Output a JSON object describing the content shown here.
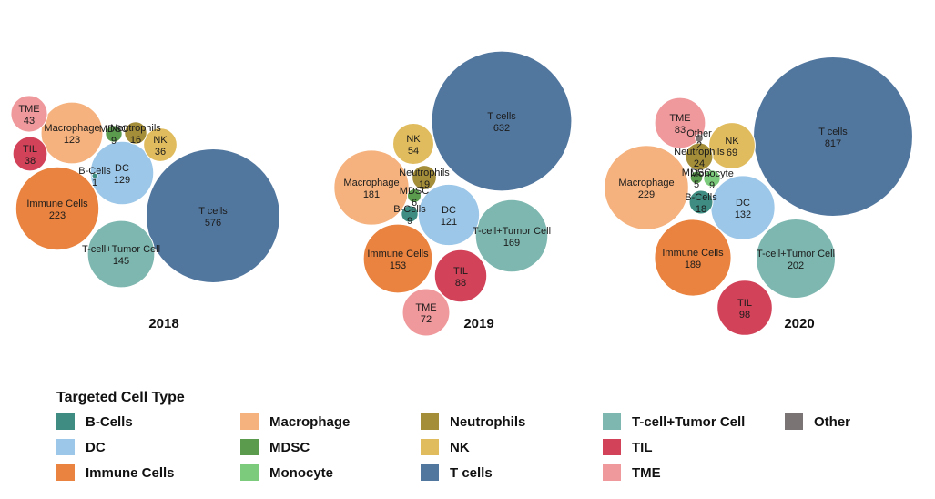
{
  "chart_data": [
    {
      "type": "bubble",
      "title": "2018",
      "bubbles": [
        {
          "name": "TME",
          "value": 43,
          "color": "#F0999C"
        },
        {
          "name": "TIL",
          "value": 38,
          "color": "#D2435A"
        },
        {
          "name": "Macrophage",
          "value": 123,
          "color": "#F5B27E"
        },
        {
          "name": "MDSC",
          "value": 9,
          "color": "#5B9B4E"
        },
        {
          "name": "Neutrophils",
          "value": 16,
          "color": "#A48E3A"
        },
        {
          "name": "NK",
          "value": 36,
          "color": "#E0BC5E"
        },
        {
          "name": "B-Cells",
          "value": 1,
          "color": "#3E8C82"
        },
        {
          "name": "DC",
          "value": 129,
          "color": "#9CC7E8"
        },
        {
          "name": "Immune Cells",
          "value": 223,
          "color": "#E9833F"
        },
        {
          "name": "T-cell+Tumor Cell",
          "value": 145,
          "color": "#7DB7AF"
        },
        {
          "name": "T cells",
          "value": 576,
          "color": "#52779F"
        }
      ]
    },
    {
      "type": "bubble",
      "title": "2019",
      "bubbles": [
        {
          "name": "T cells",
          "value": 632,
          "color": "#52779F"
        },
        {
          "name": "NK",
          "value": 54,
          "color": "#E0BC5E"
        },
        {
          "name": "Macrophage",
          "value": 181,
          "color": "#F5B27E"
        },
        {
          "name": "Neutrophils",
          "value": 19,
          "color": "#A48E3A"
        },
        {
          "name": "MDSC",
          "value": 6,
          "color": "#5B9B4E"
        },
        {
          "name": "B-Cells",
          "value": 9,
          "color": "#3E8C82"
        },
        {
          "name": "DC",
          "value": 121,
          "color": "#9CC7E8"
        },
        {
          "name": "T-cell+Tumor Cell",
          "value": 169,
          "color": "#7DB7AF"
        },
        {
          "name": "Immune Cells",
          "value": 153,
          "color": "#E9833F"
        },
        {
          "name": "TIL",
          "value": 88,
          "color": "#D2435A"
        },
        {
          "name": "TME",
          "value": 72,
          "color": "#F0999C"
        }
      ]
    },
    {
      "type": "bubble",
      "title": "2020",
      "bubbles": [
        {
          "name": "TME",
          "value": 83,
          "color": "#F0999C"
        },
        {
          "name": "Other",
          "value": 2,
          "color": "#7A7474"
        },
        {
          "name": "Neutrophils",
          "value": 24,
          "color": "#A48E3A"
        },
        {
          "name": "NK",
          "value": 69,
          "color": "#E0BC5E"
        },
        {
          "name": "MDSC",
          "value": 5,
          "color": "#5B9B4E"
        },
        {
          "name": "Monocyte",
          "value": 9,
          "color": "#7CCB7C"
        },
        {
          "name": "Macrophage",
          "value": 229,
          "color": "#F5B27E"
        },
        {
          "name": "B-Cells",
          "value": 18,
          "color": "#3E8C82"
        },
        {
          "name": "DC",
          "value": 132,
          "color": "#9CC7E8"
        },
        {
          "name": "T cells",
          "value": 817,
          "color": "#52779F"
        },
        {
          "name": "Immune Cells",
          "value": 189,
          "color": "#E9833F"
        },
        {
          "name": "T-cell+Tumor Cell",
          "value": 202,
          "color": "#7DB7AF"
        },
        {
          "name": "TIL",
          "value": 98,
          "color": "#D2435A"
        }
      ]
    }
  ],
  "legend": {
    "title": "Targeted Cell Type",
    "items": [
      {
        "label": "B-Cells",
        "color": "#3E8C82"
      },
      {
        "label": "DC",
        "color": "#9CC7E8"
      },
      {
        "label": "Immune Cells",
        "color": "#E9833F"
      },
      {
        "label": "Macrophage",
        "color": "#F5B27E"
      },
      {
        "label": "MDSC",
        "color": "#5B9B4E"
      },
      {
        "label": "Monocyte",
        "color": "#7CCB7C"
      },
      {
        "label": "Neutrophils",
        "color": "#A48E3A"
      },
      {
        "label": "NK",
        "color": "#E0BC5E"
      },
      {
        "label": "T cells",
        "color": "#52779F"
      },
      {
        "label": "T-cell+Tumor Cell",
        "color": "#7DB7AF"
      },
      {
        "label": "TIL",
        "color": "#D2435A"
      },
      {
        "label": "TME",
        "color": "#F0999C"
      },
      {
        "label": "Other",
        "color": "#7A7474"
      }
    ]
  }
}
